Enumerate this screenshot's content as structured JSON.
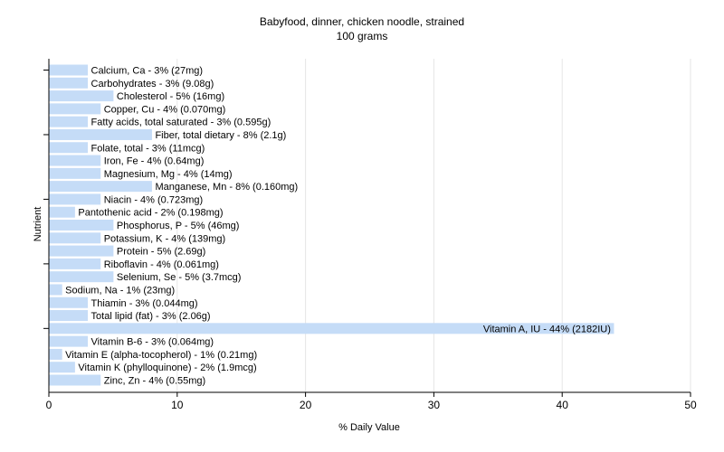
{
  "chart_data": {
    "type": "bar",
    "orientation": "horizontal",
    "title": "Babyfood, dinner, chicken noodle, strained",
    "subtitle": "100 grams",
    "xlabel": "% Daily Value",
    "ylabel": "Nutrient",
    "xlim": [
      0,
      50
    ],
    "xticks": [
      0,
      10,
      20,
      30,
      40,
      50
    ],
    "grid": true,
    "bar_color": "#c5dcf7",
    "bars": [
      {
        "label": "Calcium, Ca - 3% (27mg)",
        "value": 3
      },
      {
        "label": "Carbohydrates - 3% (9.08g)",
        "value": 3
      },
      {
        "label": "Cholesterol - 5% (16mg)",
        "value": 5
      },
      {
        "label": "Copper, Cu - 4% (0.070mg)",
        "value": 4
      },
      {
        "label": "Fatty acids, total saturated - 3% (0.595g)",
        "value": 3
      },
      {
        "label": "Fiber, total dietary - 8% (2.1g)",
        "value": 8
      },
      {
        "label": "Folate, total - 3% (11mcg)",
        "value": 3
      },
      {
        "label": "Iron, Fe - 4% (0.64mg)",
        "value": 4
      },
      {
        "label": "Magnesium, Mg - 4% (14mg)",
        "value": 4
      },
      {
        "label": "Manganese, Mn - 8% (0.160mg)",
        "value": 8
      },
      {
        "label": "Niacin - 4% (0.723mg)",
        "value": 4
      },
      {
        "label": "Pantothenic acid - 2% (0.198mg)",
        "value": 2
      },
      {
        "label": "Phosphorus, P - 5% (46mg)",
        "value": 5
      },
      {
        "label": "Potassium, K - 4% (139mg)",
        "value": 4
      },
      {
        "label": "Protein - 5% (2.69g)",
        "value": 5
      },
      {
        "label": "Riboflavin - 4% (0.061mg)",
        "value": 4
      },
      {
        "label": "Selenium, Se - 5% (3.7mcg)",
        "value": 5
      },
      {
        "label": "Sodium, Na - 1% (23mg)",
        "value": 1
      },
      {
        "label": "Thiamin - 3% (0.044mg)",
        "value": 3
      },
      {
        "label": "Total lipid (fat) - 3% (2.06g)",
        "value": 3
      },
      {
        "label": "Vitamin A, IU - 44% (2182IU)",
        "value": 44
      },
      {
        "label": "Vitamin B-6 - 3% (0.064mg)",
        "value": 3
      },
      {
        "label": "Vitamin E (alpha-tocopherol) - 1% (0.21mg)",
        "value": 1
      },
      {
        "label": "Vitamin K (phylloquinone) - 2% (1.9mcg)",
        "value": 2
      },
      {
        "label": "Zinc, Zn - 4% (0.55mg)",
        "value": 4
      }
    ]
  }
}
